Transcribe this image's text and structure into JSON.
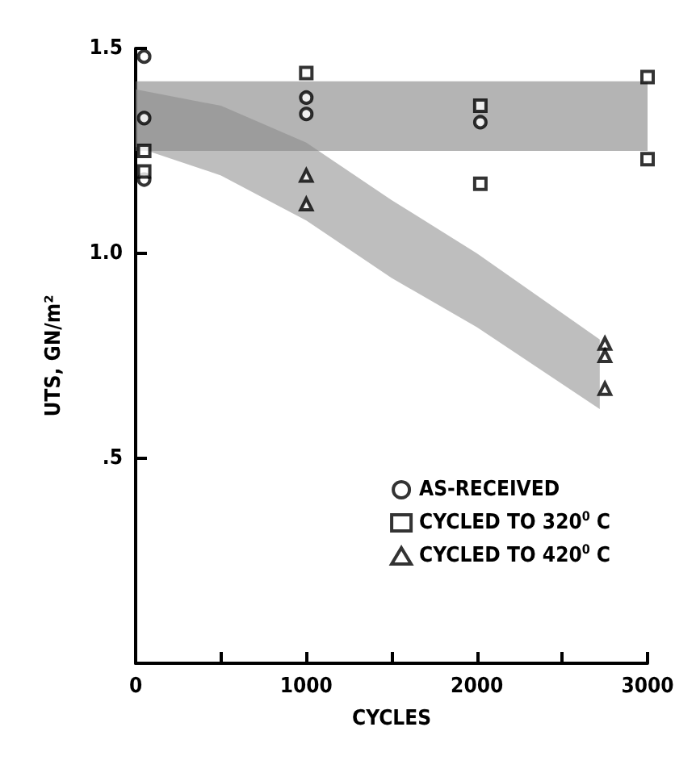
{
  "chart_data": {
    "type": "scatter",
    "xlabel": "CYCLES",
    "ylabel": "UTS, GN/m²",
    "xlim": [
      0,
      3000
    ],
    "xticks": [
      0,
      {
        "value": 500,
        "label": null
      },
      1000,
      {
        "value": 1500,
        "label": null
      },
      2000,
      {
        "value": 2500,
        "label": null
      },
      3000
    ],
    "ylim": [
      0,
      1.5
    ],
    "yticks": [
      {
        "value": 0.5,
        "label": ".5"
      },
      {
        "value": 1.0,
        "label": "1.0"
      },
      {
        "value": 1.5,
        "label": "1.5"
      }
    ],
    "grid": false,
    "legend": "bottom right",
    "bands": [
      {
        "axis": "y",
        "from": 1.25,
        "to": 1.42,
        "color": "#777777"
      }
    ],
    "series": [
      {
        "type": "area",
        "color": "#888888",
        "x": [
          0,
          500,
          1000,
          1500,
          2000,
          2720
        ],
        "values": [
          null,
          null,
          null,
          null,
          null,
          null
        ],
        "lower": [
          1.26,
          1.19,
          1.08,
          0.94,
          0.82,
          0.62
        ],
        "upper": [
          1.4,
          1.36,
          1.27,
          1.13,
          1.0,
          0.79
        ]
      },
      {
        "name": "AS-RECEIVED",
        "color": "#000000",
        "marker": "circle",
        "x": [
          50,
          50,
          50,
          1000,
          1000,
          2020
        ],
        "values": [
          1.48,
          1.33,
          1.18,
          1.38,
          1.34,
          1.32
        ]
      },
      {
        "name": "CYCLED TO 320$^{0}$ C",
        "color": "#000000",
        "marker": "square",
        "x": [
          50,
          50,
          1000,
          2020,
          2020,
          3000,
          3000
        ],
        "values": [
          1.25,
          1.2,
          1.44,
          1.36,
          1.17,
          1.43,
          1.23
        ]
      },
      {
        "name": "CYCLED TO 420$^{0}$ C",
        "color": "#000000",
        "marker": "triangle",
        "x": [
          1000,
          1000,
          2750,
          2750,
          2750
        ],
        "values": [
          1.19,
          1.12,
          0.78,
          0.75,
          0.67
        ]
      }
    ]
  }
}
